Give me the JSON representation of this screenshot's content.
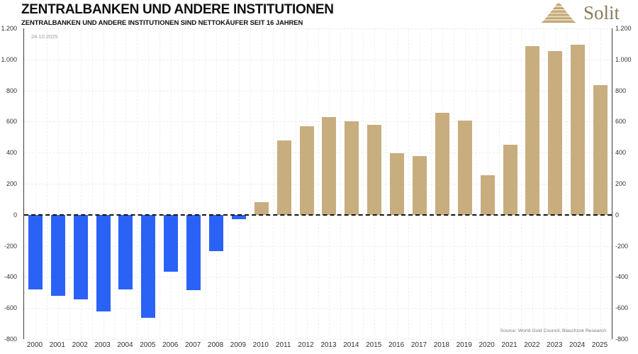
{
  "header": {
    "title": "ZENTRALBANKEN UND ANDERE INSTITUTIONEN",
    "subtitle": "ZENTRALBANKEN UND ANDERE INSTITUTIONEN SIND NETTOKÄUFER SEIT 16 JAHREN",
    "date_annotation": "24.10.2025",
    "logo_text": "Solit"
  },
  "footer": {
    "source": "Source: World Gold Council, Blaschzok Research"
  },
  "chart_data": {
    "type": "bar",
    "title": "ZENTRALBANKEN UND ANDERE INSTITUTIONEN",
    "subtitle": "ZENTRALBANKEN UND ANDERE INSTITUTIONEN SIND NETTOKÄUFER SEIT 16 JAHREN",
    "categories": [
      "2000",
      "2001",
      "2002",
      "2003",
      "2004",
      "2005",
      "2006",
      "2007",
      "2008",
      "2009",
      "2010",
      "2011",
      "2012",
      "2013",
      "2014",
      "2015",
      "2016",
      "2017",
      "2018",
      "2019",
      "2020",
      "2021",
      "2022",
      "2023",
      "2024",
      "2025"
    ],
    "values": [
      -480,
      -520,
      -545,
      -620,
      -480,
      -665,
      -365,
      -485,
      -235,
      -30,
      80,
      480,
      570,
      630,
      600,
      580,
      395,
      380,
      655,
      605,
      255,
      450,
      1085,
      1055,
      1095,
      835
    ],
    "xlabel": "",
    "ylabel": "",
    "ylim": [
      -800,
      1200
    ],
    "ytick_interval": 200,
    "yticks": [
      {
        "value": 1200,
        "label": "1.200"
      },
      {
        "value": 1000,
        "label": "1.000"
      },
      {
        "value": 800,
        "label": "800"
      },
      {
        "value": 600,
        "label": "600"
      },
      {
        "value": 400,
        "label": "400"
      },
      {
        "value": 200,
        "label": "200"
      },
      {
        "value": 0,
        "label": "0"
      },
      {
        "value": -200,
        "label": "-200"
      },
      {
        "value": -400,
        "label": "-400"
      },
      {
        "value": -600,
        "label": "-600"
      },
      {
        "value": -800,
        "label": "-800"
      }
    ],
    "grid": true,
    "legend": "none",
    "zero_line_style": "dashed-black",
    "colors": {
      "positive": "#C8AD7F",
      "negative": "#2B62F6",
      "grid": "#efecec",
      "zero_line": "#151515",
      "axis_line": "#3c3c3c",
      "logo_gold_light": "#dfcba1",
      "logo_gold_dark": "#b3945c",
      "logo_text": "#8a7c5e"
    }
  }
}
